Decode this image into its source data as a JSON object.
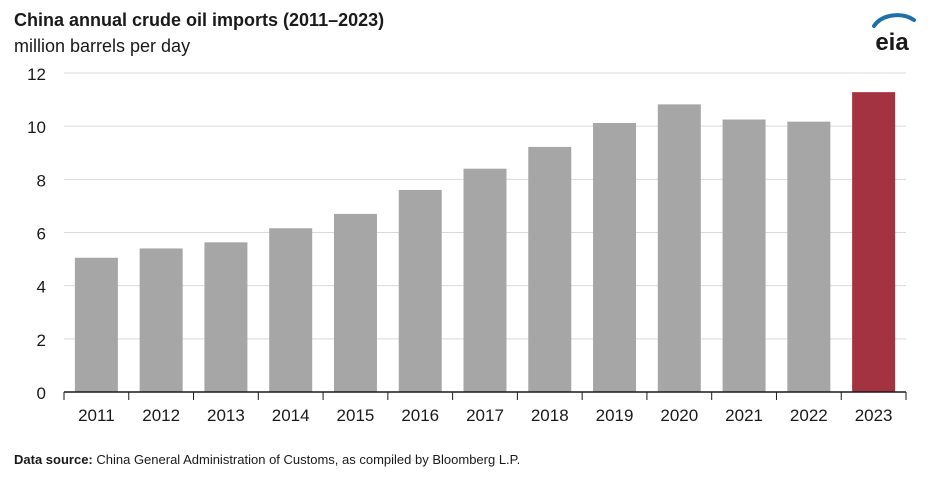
{
  "header": {
    "title": "China annual crude oil imports (2011–2023)",
    "subtitle": "million barrels per day",
    "logo_text": "eia"
  },
  "footer": {
    "source_label": "Data source:",
    "source_text": " China General Administration of Customs, as compiled by Bloomberg L.P."
  },
  "colors": {
    "bar": "#a6a6a6",
    "highlight": "#a33340",
    "grid": "#d9d9d9",
    "axis": "#1a1a1a",
    "logo": "#1f6fa8"
  },
  "chart_data": {
    "type": "bar",
    "title": "China annual crude oil imports (2011–2023)",
    "ylabel": "million barrels per day",
    "xlabel": "",
    "categories": [
      "2011",
      "2012",
      "2013",
      "2014",
      "2015",
      "2016",
      "2017",
      "2018",
      "2019",
      "2020",
      "2021",
      "2022",
      "2023"
    ],
    "values": [
      5.05,
      5.4,
      5.63,
      6.16,
      6.7,
      7.6,
      8.4,
      9.22,
      10.12,
      10.82,
      10.25,
      10.17,
      11.28
    ],
    "highlight_index": 12,
    "ylim": [
      0,
      12
    ],
    "yticks": [
      0,
      2,
      4,
      6,
      8,
      10,
      12
    ],
    "grid": true,
    "legend": "none"
  }
}
